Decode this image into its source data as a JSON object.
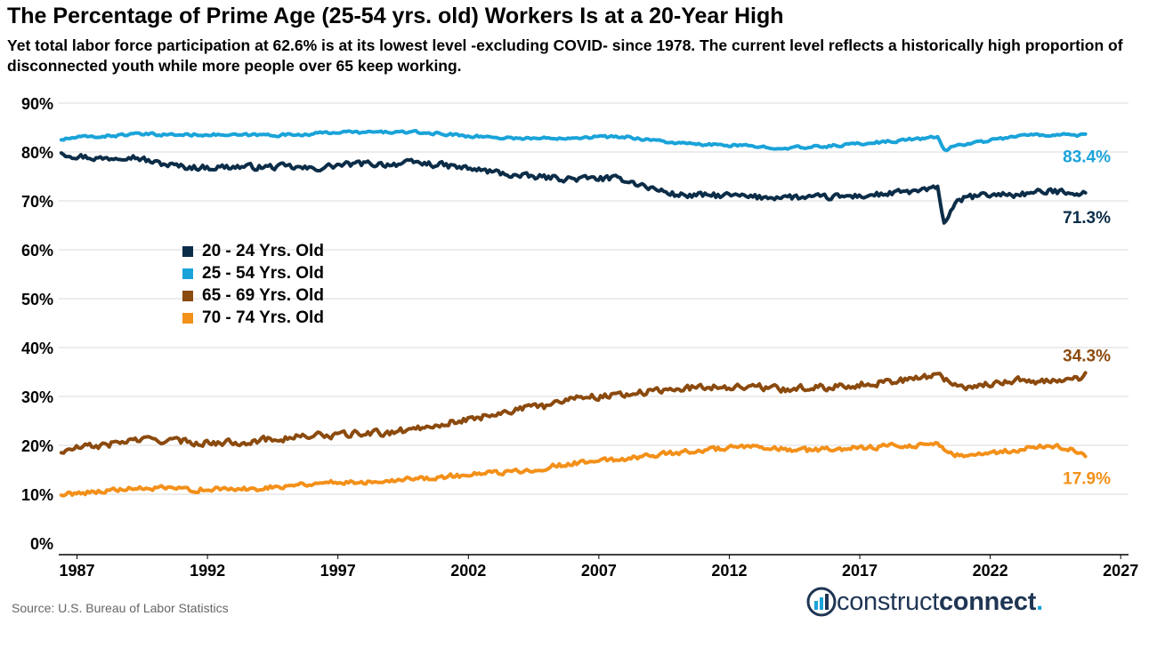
{
  "header": {
    "title": "The Percentage of Prime Age (25-54 yrs. old) Workers Is at a 20-Year High",
    "subtitle": "Yet total labor force participation at 62.6% is at its lowest level -excluding COVID- since 1978. The current level reflects a historically high proportion of disconnected youth while more people over 65 keep working."
  },
  "footer": {
    "source": "Source: U.S. Bureau of Labor Statistics",
    "logo_part1": "construct",
    "logo_part2": "connect",
    "logo_dot": ".",
    "logo_icon": "building-bars-icon"
  },
  "chart_data": {
    "type": "line",
    "title": "The Percentage of Prime Age (25-54 yrs. old) Workers Is at a 20-Year High",
    "xlabel": "",
    "ylabel": "",
    "xlim": [
      1986.3,
      2027.3
    ],
    "ylim": [
      0,
      90
    ],
    "x_ticks": [
      1987,
      1992,
      1997,
      2002,
      2007,
      2012,
      2017,
      2022,
      2027
    ],
    "x_tick_labels": [
      "1987",
      "1992",
      "1997",
      "2002",
      "2007",
      "2012",
      "2017",
      "2022",
      "2027"
    ],
    "y_ticks": [
      0,
      10,
      20,
      30,
      40,
      50,
      60,
      70,
      80,
      90
    ],
    "y_tick_labels": [
      "0%",
      "10%",
      "20%",
      "30%",
      "40%",
      "50%",
      "60%",
      "70%",
      "80%",
      "90%"
    ],
    "grid": {
      "horizontal": true,
      "vertical": false
    },
    "legend_position": "center-left",
    "series": [
      {
        "name": "20 - 24 Yrs. Old",
        "color": "#0c2d48",
        "end_label": "71.3%",
        "points": [
          [
            1986.4,
            79.8
          ],
          [
            1987,
            79.2
          ],
          [
            1988,
            78.6
          ],
          [
            1989,
            79.3
          ],
          [
            1990,
            77.8
          ],
          [
            1991,
            77.0
          ],
          [
            1992,
            76.8
          ],
          [
            1993,
            77.0
          ],
          [
            1994,
            76.9
          ],
          [
            1995,
            77.0
          ],
          [
            1996,
            76.5
          ],
          [
            1997,
            77.3
          ],
          [
            1998,
            77.6
          ],
          [
            1999,
            77.5
          ],
          [
            2000,
            77.8
          ],
          [
            2001,
            77.3
          ],
          [
            2002,
            76.6
          ],
          [
            2003,
            75.9
          ],
          [
            2004,
            75.0
          ],
          [
            2005,
            74.8
          ],
          [
            2006,
            74.5
          ],
          [
            2007,
            74.6
          ],
          [
            2008,
            74.4
          ],
          [
            2009,
            72.6
          ],
          [
            2010,
            71.2
          ],
          [
            2011,
            71.1
          ],
          [
            2012,
            71.1
          ],
          [
            2013,
            70.7
          ],
          [
            2014,
            70.9
          ],
          [
            2015,
            70.6
          ],
          [
            2016,
            70.8
          ],
          [
            2017,
            71.0
          ],
          [
            2018,
            71.4
          ],
          [
            2019,
            71.9
          ],
          [
            2020.0,
            72.5
          ],
          [
            2020.25,
            65.0
          ],
          [
            2020.5,
            68.5
          ],
          [
            2021,
            70.6
          ],
          [
            2022,
            71.3
          ],
          [
            2023,
            71.3
          ],
          [
            2024,
            71.8
          ],
          [
            2025,
            72.0
          ],
          [
            2025.7,
            71.3
          ]
        ]
      },
      {
        "name": "25 - 54 Yrs. Old",
        "color": "#1aa3d9",
        "end_label": "83.4%",
        "points": [
          [
            1986.4,
            82.5
          ],
          [
            1987,
            83.0
          ],
          [
            1988,
            83.2
          ],
          [
            1989,
            83.6
          ],
          [
            1990,
            83.6
          ],
          [
            1991,
            83.5
          ],
          [
            1992,
            83.6
          ],
          [
            1993,
            83.4
          ],
          [
            1994,
            83.5
          ],
          [
            1995,
            83.5
          ],
          [
            1996,
            83.7
          ],
          [
            1997,
            84.1
          ],
          [
            1998,
            84.0
          ],
          [
            1999,
            84.1
          ],
          [
            2000,
            84.0
          ],
          [
            2001,
            83.7
          ],
          [
            2002,
            83.3
          ],
          [
            2003,
            83.0
          ],
          [
            2004,
            82.8
          ],
          [
            2005,
            82.8
          ],
          [
            2006,
            83.0
          ],
          [
            2007,
            83.1
          ],
          [
            2008,
            83.1
          ],
          [
            2009,
            82.5
          ],
          [
            2010,
            81.8
          ],
          [
            2011,
            81.5
          ],
          [
            2012,
            81.4
          ],
          [
            2013,
            81.1
          ],
          [
            2014,
            80.9
          ],
          [
            2015,
            80.9
          ],
          [
            2016,
            81.3
          ],
          [
            2017,
            81.7
          ],
          [
            2018,
            82.1
          ],
          [
            2019,
            82.6
          ],
          [
            2020.0,
            83.0
          ],
          [
            2020.25,
            80.2
          ],
          [
            2020.6,
            81.3
          ],
          [
            2021,
            81.6
          ],
          [
            2022,
            82.4
          ],
          [
            2023,
            83.3
          ],
          [
            2024,
            83.5
          ],
          [
            2025,
            83.6
          ],
          [
            2025.7,
            83.4
          ]
        ]
      },
      {
        "name": "65 - 69 Yrs. Old",
        "color": "#8b4a0e",
        "end_label": "34.3%",
        "points": [
          [
            1986.4,
            18.5
          ],
          [
            1987,
            19.5
          ],
          [
            1988,
            20.0
          ],
          [
            1989,
            21.0
          ],
          [
            1990,
            21.2
          ],
          [
            1991,
            20.8
          ],
          [
            1992,
            20.5
          ],
          [
            1993,
            20.6
          ],
          [
            1994,
            21.0
          ],
          [
            1995,
            21.5
          ],
          [
            1996,
            22.0
          ],
          [
            1997,
            22.0
          ],
          [
            1998,
            22.5
          ],
          [
            1999,
            22.5
          ],
          [
            2000,
            23.5
          ],
          [
            2001,
            24.5
          ],
          [
            2002,
            25.2
          ],
          [
            2003,
            26.5
          ],
          [
            2004,
            27.5
          ],
          [
            2005,
            28.0
          ],
          [
            2006,
            30.0
          ],
          [
            2007,
            30.0
          ],
          [
            2008,
            30.5
          ],
          [
            2009,
            31.0
          ],
          [
            2010,
            31.5
          ],
          [
            2011,
            32.0
          ],
          [
            2012,
            32.0
          ],
          [
            2013,
            32.0
          ],
          [
            2014,
            31.5
          ],
          [
            2015,
            31.8
          ],
          [
            2016,
            32.0
          ],
          [
            2017,
            32.5
          ],
          [
            2018,
            33.0
          ],
          [
            2019,
            33.5
          ],
          [
            2020.0,
            34.5
          ],
          [
            2020.6,
            32.5
          ],
          [
            2021,
            32.0
          ],
          [
            2022,
            32.5
          ],
          [
            2023,
            33.5
          ],
          [
            2024,
            33.0
          ],
          [
            2025,
            33.2
          ],
          [
            2025.7,
            34.3
          ]
        ]
      },
      {
        "name": "70 - 74 Yrs. Old",
        "color": "#f39019",
        "end_label": "17.9%",
        "points": [
          [
            1986.4,
            9.8
          ],
          [
            1987,
            10.3
          ],
          [
            1988,
            10.7
          ],
          [
            1989,
            11.0
          ],
          [
            1990,
            11.2
          ],
          [
            1991,
            11.0
          ],
          [
            1992,
            11.0
          ],
          [
            1993,
            11.0
          ],
          [
            1994,
            11.2
          ],
          [
            1995,
            11.8
          ],
          [
            1996,
            12.2
          ],
          [
            1997,
            12.5
          ],
          [
            1998,
            12.5
          ],
          [
            1999,
            13.0
          ],
          [
            2000,
            13.2
          ],
          [
            2001,
            13.5
          ],
          [
            2002,
            14.0
          ],
          [
            2003,
            14.3
          ],
          [
            2004,
            14.8
          ],
          [
            2005,
            15.5
          ],
          [
            2006,
            16.3
          ],
          [
            2007,
            16.8
          ],
          [
            2008,
            17.3
          ],
          [
            2009,
            18.0
          ],
          [
            2010,
            18.5
          ],
          [
            2011,
            19.0
          ],
          [
            2012,
            19.5
          ],
          [
            2013,
            19.5
          ],
          [
            2014,
            19.2
          ],
          [
            2015,
            19.0
          ],
          [
            2016,
            19.2
          ],
          [
            2017,
            19.5
          ],
          [
            2018,
            19.8
          ],
          [
            2019,
            20.0
          ],
          [
            2020.0,
            20.5
          ],
          [
            2020.4,
            18.5
          ],
          [
            2021,
            17.5
          ],
          [
            2022,
            18.5
          ],
          [
            2023,
            19.0
          ],
          [
            2024,
            19.8
          ],
          [
            2025,
            19.5
          ],
          [
            2025.7,
            17.9
          ]
        ]
      }
    ]
  }
}
